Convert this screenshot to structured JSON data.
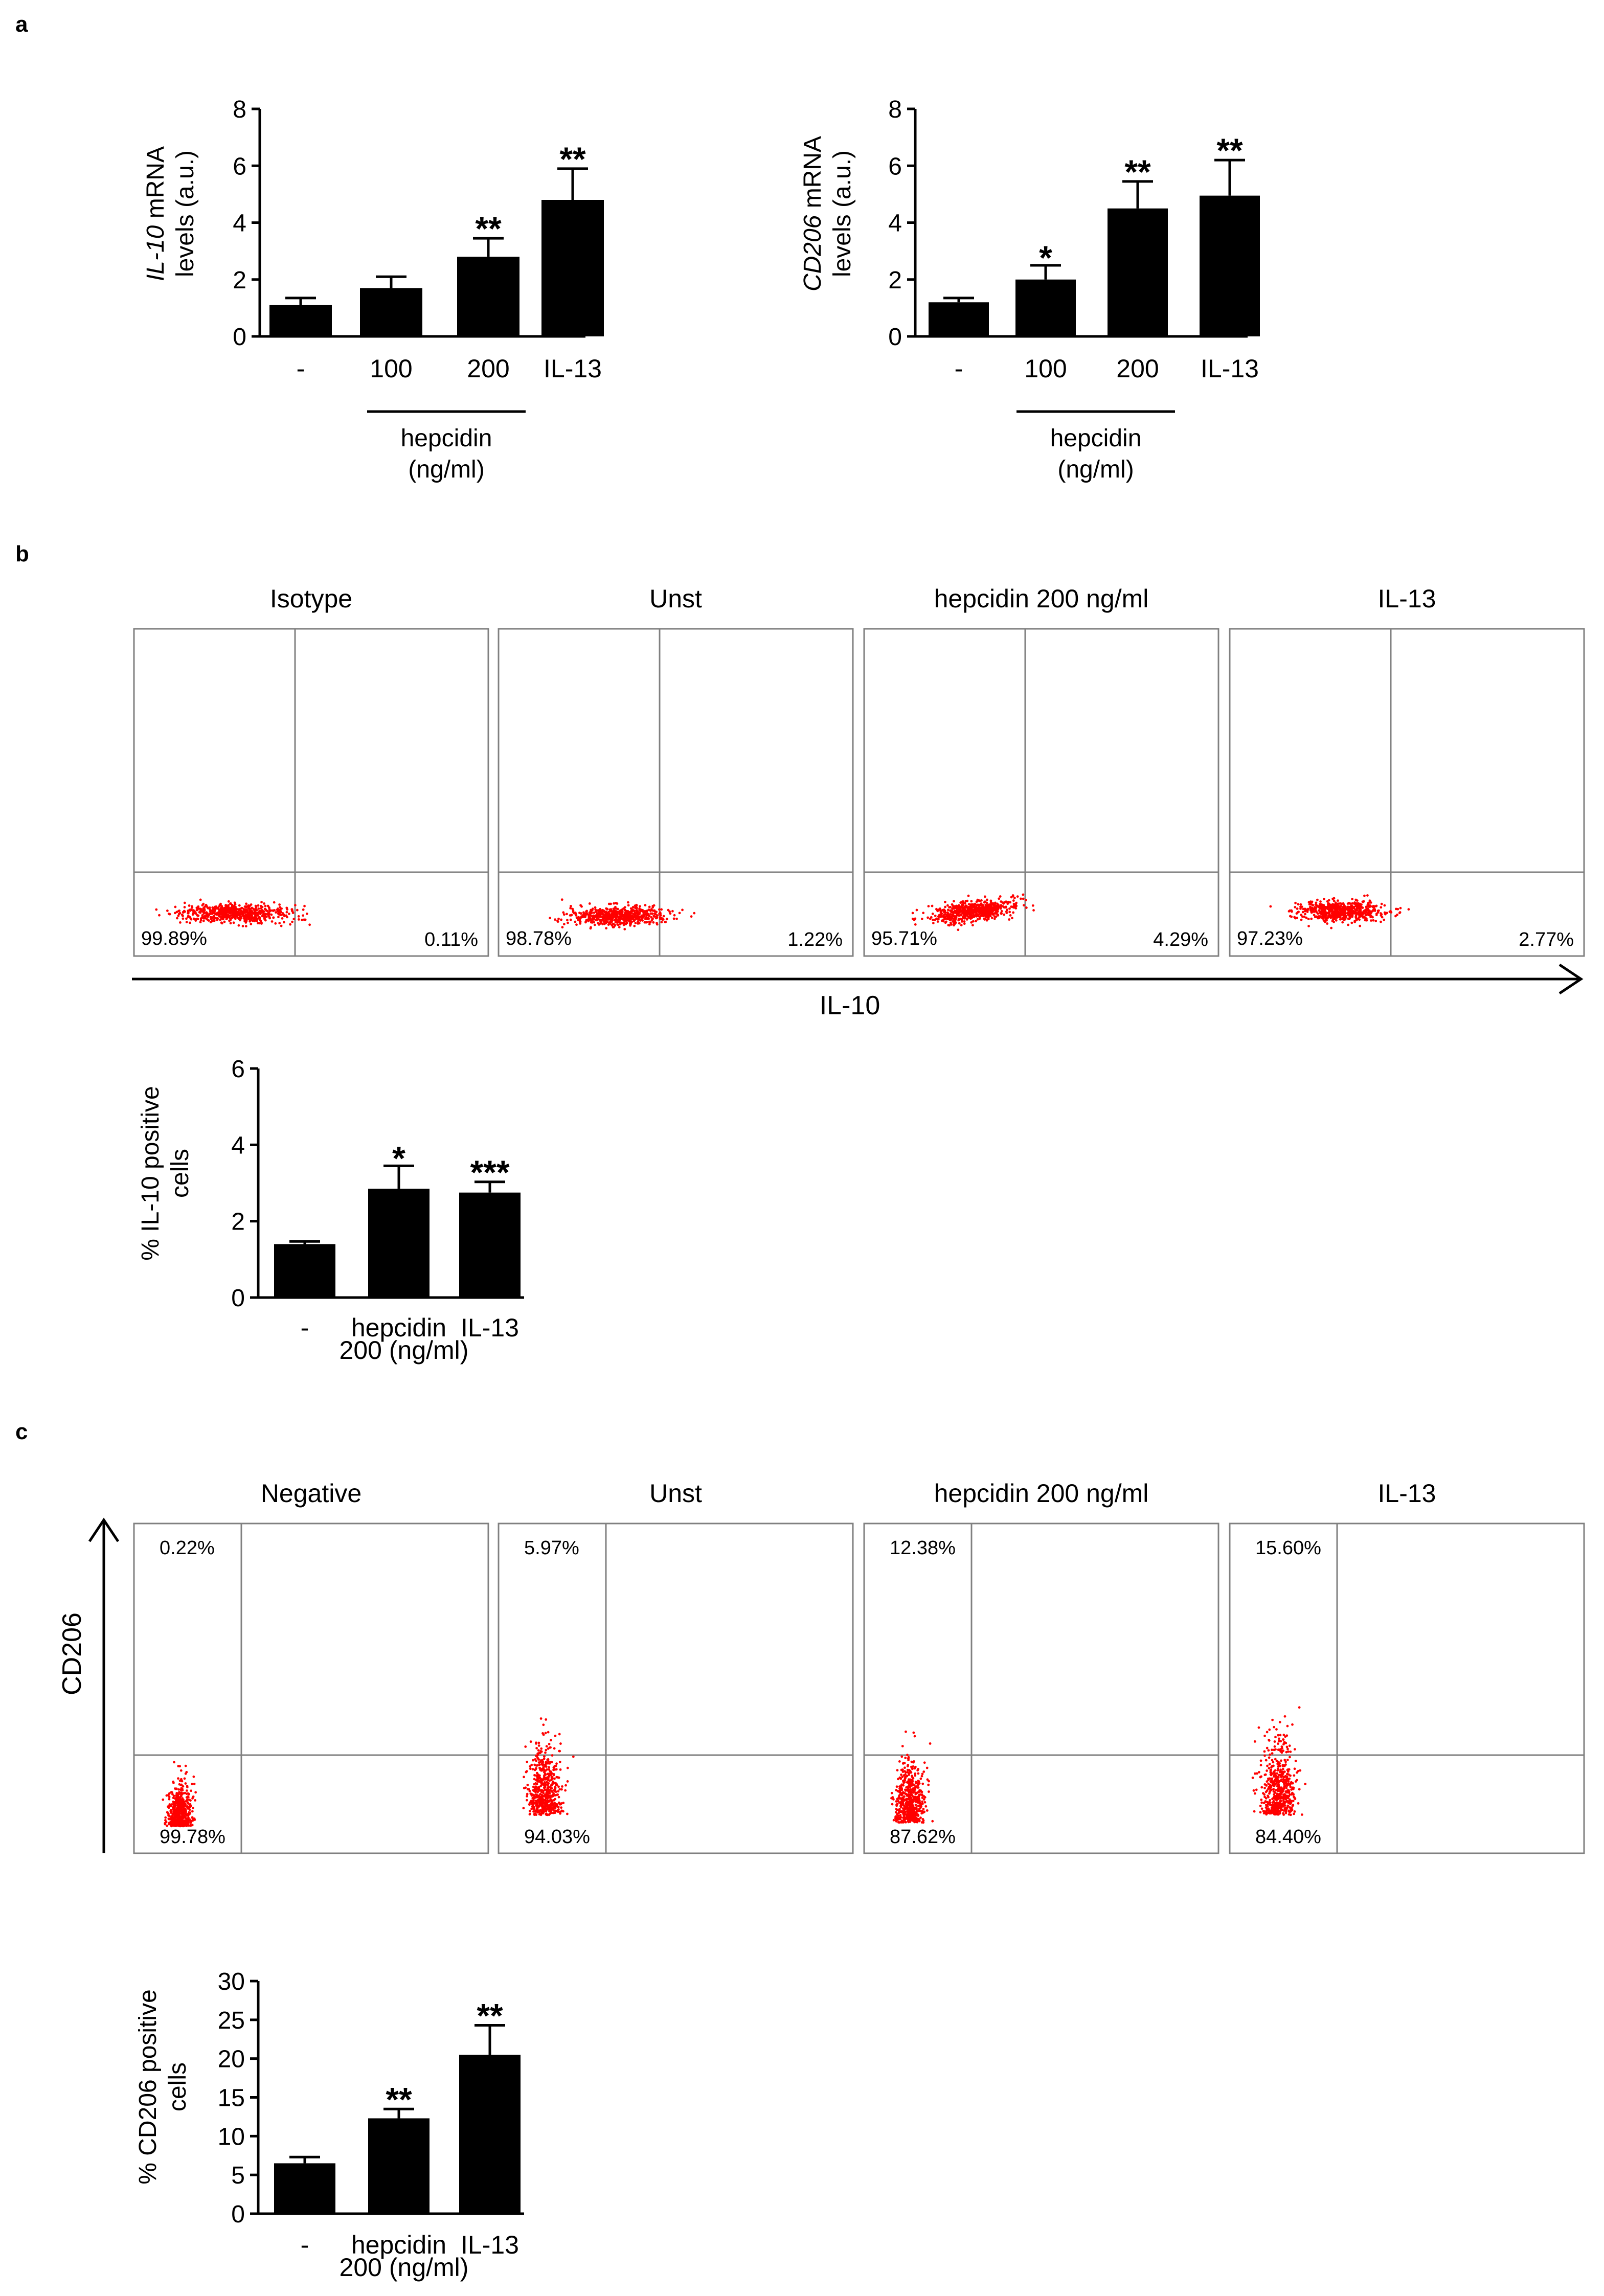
{
  "colors": {
    "bar": "#000000",
    "dots": "#ff0000",
    "gate": "#808080",
    "box": "#808080"
  },
  "panel_labels": [
    "a",
    "b",
    "c"
  ],
  "groups": {
    "hepcidin_line1": "hepcidin",
    "hepcidin_line2": "(ng/ml)"
  },
  "chart_data": [
    {
      "type": "bar",
      "id": "a1",
      "title": "",
      "ylabel_italic": "IL-10",
      "ylabel_rest": " mRNA",
      "ylabel_line2": "levels (a.u.)",
      "categories": [
        "-",
        "100",
        "200",
        "IL-13"
      ],
      "values": [
        1.1,
        1.7,
        2.8,
        4.8
      ],
      "errors": [
        0.25,
        0.4,
        0.65,
        1.1
      ],
      "significance": [
        "",
        "",
        "**",
        "**"
      ],
      "ylim": [
        0,
        8
      ],
      "yticks": [
        "0",
        "2",
        "4",
        "6",
        "8"
      ]
    },
    {
      "type": "bar",
      "id": "a2",
      "title": "",
      "ylabel_italic": "CD206",
      "ylabel_rest": " mRNA",
      "ylabel_line2": "levels (a.u.)",
      "categories": [
        "-",
        "100",
        "200",
        "IL-13"
      ],
      "values": [
        1.2,
        2.0,
        4.5,
        4.95
      ],
      "errors": [
        0.15,
        0.5,
        0.95,
        1.25
      ],
      "significance": [
        "",
        "*",
        "**",
        "**"
      ],
      "ylim": [
        0,
        8
      ],
      "yticks": [
        "0",
        "2",
        "4",
        "6",
        "8"
      ]
    },
    {
      "type": "bar",
      "id": "b",
      "title": "",
      "ylabel": "% IL-10 positive",
      "ylabel_line2": "cells",
      "categories": [
        "-",
        "hepcidin",
        "IL-13"
      ],
      "category_sublabel": "200 (ng/ml)",
      "values": [
        1.4,
        2.85,
        2.75
      ],
      "errors": [
        0.07,
        0.6,
        0.28
      ],
      "significance": [
        "",
        "*",
        "***"
      ],
      "ylim": [
        0,
        6
      ],
      "yticks": [
        "0",
        "2",
        "4",
        "6"
      ]
    },
    {
      "type": "bar",
      "id": "c",
      "title": "",
      "ylabel": "% CD206 positive",
      "ylabel_line2": "cells",
      "categories": [
        "-",
        "hepcidin",
        "IL-13"
      ],
      "category_sublabel": "200 (ng/ml)",
      "values": [
        6.5,
        12.3,
        20.5
      ],
      "errors": [
        0.8,
        1.2,
        3.8
      ],
      "significance": [
        "",
        "**",
        "**"
      ],
      "ylim": [
        0,
        30
      ],
      "yticks": [
        "0",
        "5",
        "10",
        "15",
        "20",
        "25",
        "30"
      ]
    },
    {
      "type": "scatter",
      "id": "flow-b",
      "x_axis_label": "IL-10",
      "panels": [
        {
          "title": "Isotype",
          "left_pct": "99.89%",
          "right_pct": "0.11%"
        },
        {
          "title": "Unst",
          "left_pct": "98.78%",
          "right_pct": "1.22%"
        },
        {
          "title": "hepcidin 200 ng/ml",
          "left_pct": "95.71%",
          "right_pct": "4.29%"
        },
        {
          "title": "IL-13",
          "left_pct": "97.23%",
          "right_pct": "2.77%"
        }
      ]
    },
    {
      "type": "scatter",
      "id": "flow-c",
      "y_axis_label": "CD206",
      "panels": [
        {
          "title": "Negative",
          "upper_pct": "0.22%",
          "lower_pct": "99.78%"
        },
        {
          "title": "Unst",
          "upper_pct": "5.97%",
          "lower_pct": "94.03%"
        },
        {
          "title": "hepcidin 200 ng/ml",
          "upper_pct": "12.38%",
          "lower_pct": "87.62%"
        },
        {
          "title": "IL-13",
          "upper_pct": "15.60%",
          "lower_pct": "84.40%"
        }
      ]
    }
  ]
}
